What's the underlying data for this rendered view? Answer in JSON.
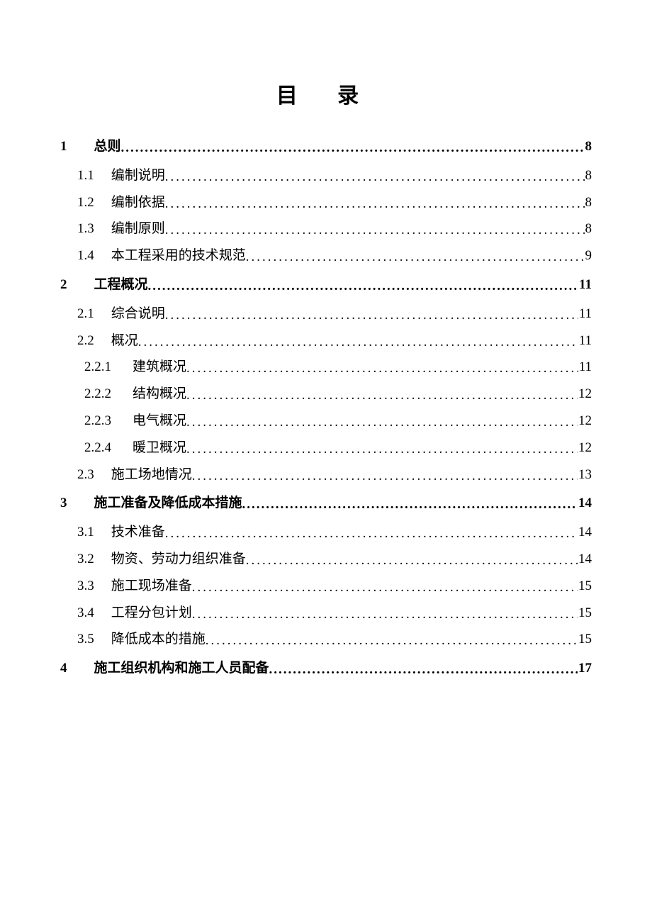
{
  "title": "目 录",
  "title_fontsize": 30,
  "body_fontsize": 19,
  "background_color": "#ffffff",
  "text_color": "#000000",
  "entries": [
    {
      "level": 1,
      "num": "1",
      "text": "总则",
      "page": "8"
    },
    {
      "level": 2,
      "num": "1.1",
      "text": "编制说明",
      "page": "8"
    },
    {
      "level": 2,
      "num": "1.2",
      "text": "编制依据",
      "page": "8"
    },
    {
      "level": 2,
      "num": "1.3",
      "text": "编制原则",
      "page": "8"
    },
    {
      "level": 2,
      "num": "1.4",
      "text": "本工程采用的技术规范",
      "page": "9"
    },
    {
      "level": 1,
      "num": "2",
      "text": "工程概况",
      "page": "11"
    },
    {
      "level": 2,
      "num": "2.1",
      "text": "综合说明",
      "page": "11"
    },
    {
      "level": 2,
      "num": "2.2",
      "text": "概况",
      "page": "11"
    },
    {
      "level": 3,
      "num": "2.2.1",
      "text": "建筑概况",
      "page": "11"
    },
    {
      "level": 3,
      "num": "2.2.2",
      "text": "结构概况",
      "page": "12"
    },
    {
      "level": 3,
      "num": "2.2.3",
      "text": "电气概况",
      "page": "12"
    },
    {
      "level": 3,
      "num": "2.2.4",
      "text": "暖卫概况",
      "page": "12"
    },
    {
      "level": 2,
      "num": "2.3",
      "text": "施工场地情况",
      "page": "13"
    },
    {
      "level": 1,
      "num": "3",
      "text": "施工准备及降低成本措施",
      "page": "14"
    },
    {
      "level": 2,
      "num": "3.1",
      "text": "技术准备",
      "page": "14"
    },
    {
      "level": 2,
      "num": "3.2",
      "text": "物资、劳动力组织准备",
      "page": "14"
    },
    {
      "level": 2,
      "num": "3.3",
      "text": "施工现场准备",
      "page": "15"
    },
    {
      "level": 2,
      "num": "3.4",
      "text": "工程分包计划",
      "page": "15"
    },
    {
      "level": 2,
      "num": "3.5",
      "text": "降低成本的措施",
      "page": "15"
    },
    {
      "level": 1,
      "num": "4",
      "text": "施工组织机构和施工人员配备",
      "page": "17"
    }
  ]
}
